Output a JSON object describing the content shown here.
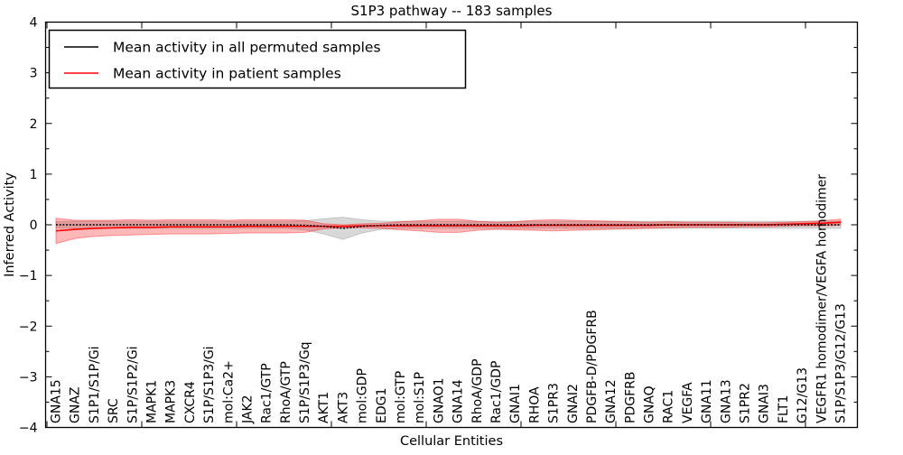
{
  "chart_data": {
    "type": "line",
    "title": "S1P3 pathway -- 183 samples",
    "xlabel": "Cellular Entities",
    "ylabel": "Inferred Activity",
    "ylim": [
      -4,
      4
    ],
    "yticks": [
      -4,
      -3,
      -2,
      -1,
      0,
      1,
      2,
      3,
      4
    ],
    "grid": false,
    "legend_position": "upper left",
    "categories": [
      "GNA15",
      "GNAZ",
      "S1P1/S1P/Gi",
      "SRC",
      "S1P/S1P2/Gi",
      "MAPK1",
      "MAPK3",
      "CXCR4",
      "S1P/S1P3/Gi",
      "mol:Ca2+",
      "JAK2",
      "Rac1/GTP",
      "RhoA/GTP",
      "S1P/S1P3/Gq",
      "AKT1",
      "AKT3",
      "mol:GDP",
      "EDG1",
      "mol:GTP",
      "mol:S1P",
      "GNAO1",
      "GNA14",
      "RhoA/GDP",
      "Rac1/GDP",
      "GNAI1",
      "RHOA",
      "S1PR3",
      "GNAI2",
      "PDGFB-D/PDGFRB",
      "GNA12",
      "PDGFRB",
      "GNAQ",
      "RAC1",
      "VEGFA",
      "GNA11",
      "GNA13",
      "S1PR2",
      "GNAI3",
      "FLT1",
      "G12/G13",
      "VEGFR1 homodimer/VEGFA homodimer",
      "S1P/S1P3/G12/G13"
    ],
    "series": [
      {
        "name": "Mean activity in all permuted samples",
        "color": "#000000",
        "linestyle": "dotted",
        "values": [
          0,
          0,
          0,
          0,
          0,
          0,
          0,
          0,
          0,
          0,
          0,
          0,
          0,
          -0.01,
          -0.03,
          -0.07,
          -0.03,
          -0.01,
          0,
          0,
          0,
          0,
          0,
          0,
          0,
          0,
          0,
          0,
          0,
          0,
          0,
          0,
          0,
          0,
          0,
          0,
          0,
          0,
          0,
          0,
          0,
          0
        ],
        "band_halfwidth": [
          0.06,
          0.07,
          0.07,
          0.07,
          0.07,
          0.07,
          0.07,
          0.07,
          0.07,
          0.07,
          0.07,
          0.07,
          0.07,
          0.09,
          0.15,
          0.22,
          0.13,
          0.08,
          0.07,
          0.07,
          0.07,
          0.07,
          0.07,
          0.07,
          0.07,
          0.07,
          0.07,
          0.07,
          0.07,
          0.07,
          0.07,
          0.07,
          0.07,
          0.07,
          0.07,
          0.07,
          0.07,
          0.07,
          0.07,
          0.07,
          0.07,
          0.07
        ],
        "band_color": "#9e9e9e",
        "band_opacity": 0.4
      },
      {
        "name": "Mean activity in patient samples",
        "color": "#ff0000",
        "linestyle": "solid",
        "values": [
          -0.12,
          -0.09,
          -0.07,
          -0.06,
          -0.05,
          -0.05,
          -0.04,
          -0.04,
          -0.04,
          -0.04,
          -0.03,
          -0.03,
          -0.03,
          -0.03,
          -0.03,
          -0.03,
          -0.02,
          -0.02,
          -0.02,
          -0.02,
          -0.02,
          -0.02,
          -0.02,
          -0.02,
          -0.02,
          -0.01,
          -0.01,
          -0.01,
          -0.01,
          -0.01,
          -0.01,
          -0.01,
          0,
          0,
          0,
          0,
          0,
          0,
          0.01,
          0.02,
          0.03,
          0.05
        ],
        "band_halfwidth": [
          0.25,
          0.18,
          0.16,
          0.15,
          0.15,
          0.14,
          0.14,
          0.14,
          0.14,
          0.13,
          0.13,
          0.13,
          0.13,
          0.12,
          0.05,
          0.03,
          0.04,
          0.05,
          0.08,
          0.1,
          0.13,
          0.13,
          0.09,
          0.07,
          0.08,
          0.1,
          0.11,
          0.1,
          0.09,
          0.08,
          0.07,
          0.06,
          0.06,
          0.05,
          0.05,
          0.05,
          0.04,
          0.04,
          0.04,
          0.04,
          0.05,
          0.06
        ],
        "band_color": "#ff0000",
        "band_opacity": 0.28
      }
    ]
  }
}
